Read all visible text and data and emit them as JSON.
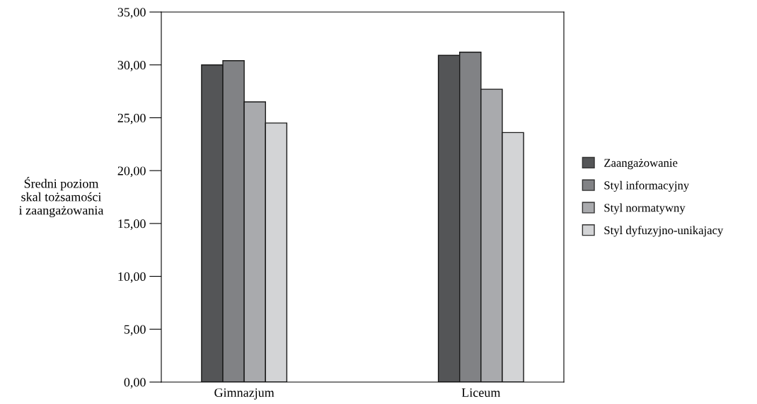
{
  "chart_data": {
    "type": "bar",
    "ylabel": "Średni poziom\nskal tożsamości\ni zaangażowania",
    "categories": [
      "Gimnazjum",
      "Liceum"
    ],
    "series": [
      {
        "name": "Zaangażowanie",
        "color": "#545557",
        "values": [
          30.0,
          30.9
        ]
      },
      {
        "name": "Styl informacyjny",
        "color": "#818285",
        "values": [
          30.4,
          31.2
        ]
      },
      {
        "name": "Styl normatywny",
        "color": "#a9aaad",
        "values": [
          26.5,
          27.7
        ]
      },
      {
        "name": "Styl dyfuzyjno-unikajacy",
        "color": "#d3d4d6",
        "values": [
          24.5,
          23.6
        ]
      }
    ],
    "ylim": [
      0,
      35
    ],
    "yticks": [
      {
        "value": 0,
        "label": "0,00"
      },
      {
        "value": 5,
        "label": "5,00"
      },
      {
        "value": 10,
        "label": "10,00"
      },
      {
        "value": 15,
        "label": "15,00"
      },
      {
        "value": 20,
        "label": "20,00"
      },
      {
        "value": 25,
        "label": "25,00"
      },
      {
        "value": 30,
        "label": "30,00"
      },
      {
        "value": 35,
        "label": "35,00"
      }
    ],
    "grid": false,
    "legend": "right"
  }
}
